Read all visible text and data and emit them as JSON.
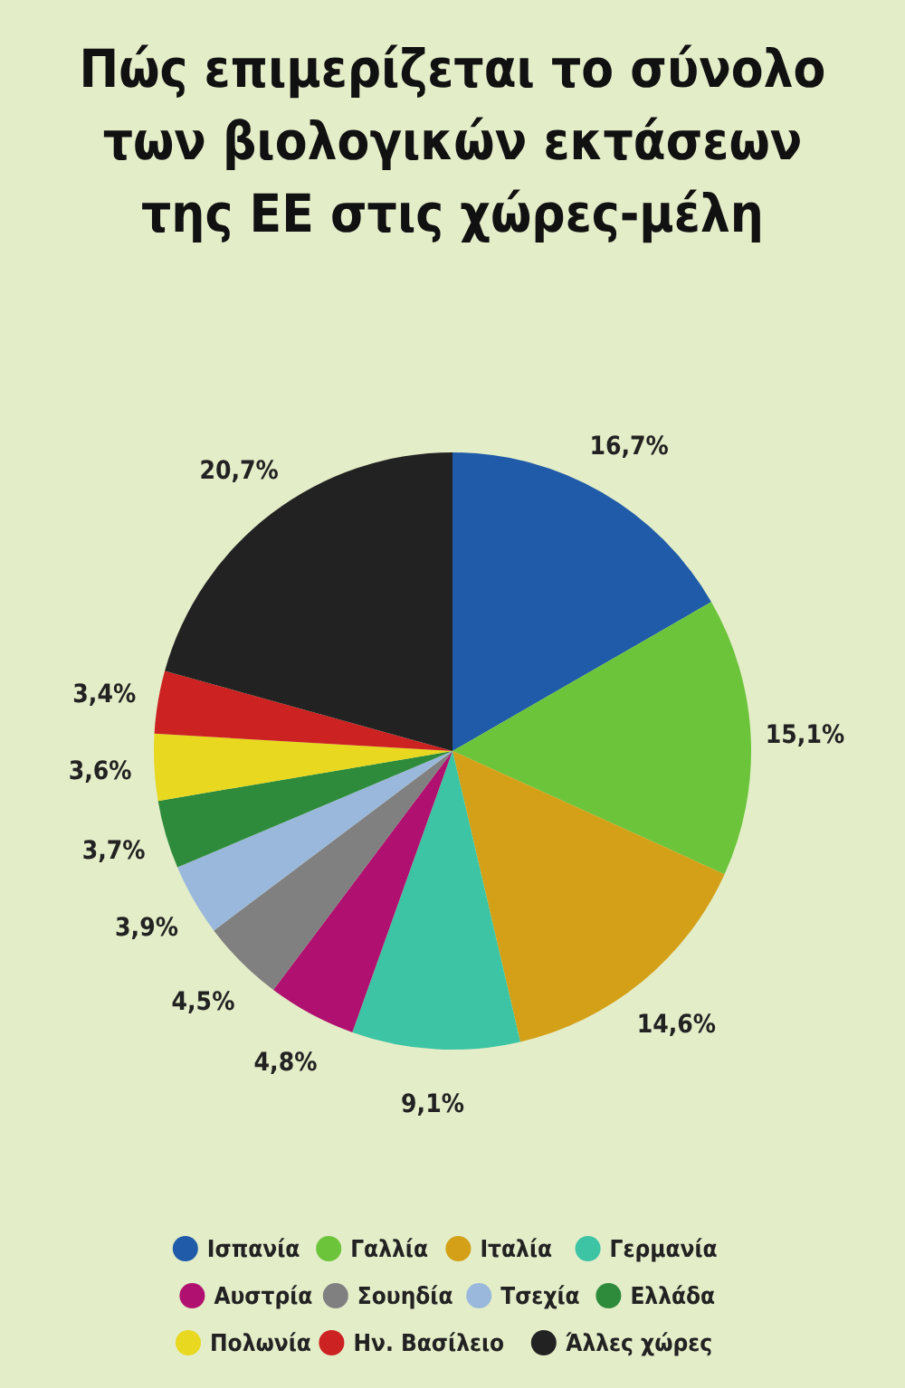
{
  "chart_data": {
    "type": "pie",
    "title": "Πώς επιμερίζεται το σύνολο των βιολογικών εκτάσεων της ΕΕ στις χώρες-μέλη",
    "categories": [
      "Ισπανία",
      "Γαλλία",
      "Ιταλία",
      "Γερμανία",
      "Αυστρία",
      "Σουηδία",
      "Τσεχία",
      "Ελλάδα",
      "Πολωνία",
      "Ην. Βασίλειο",
      "Άλλες χώρες"
    ],
    "values": [
      16.7,
      15.1,
      14.6,
      9.1,
      4.8,
      4.5,
      3.9,
      3.7,
      3.6,
      3.4,
      20.7
    ],
    "value_labels": [
      "16,7%",
      "15,1%",
      "14,6%",
      "9,1%",
      "4,8%",
      "4,5%",
      "3,9%",
      "3,7%",
      "3,6%",
      "3,4%",
      "20,7%"
    ],
    "colors": [
      "#1f5ba8",
      "#6cc43a",
      "#d4a017",
      "#3cc4a4",
      "#b0106f",
      "#808080",
      "#9ab8dc",
      "#2e8b3c",
      "#e8d820",
      "#cc2222",
      "#222222"
    ],
    "legend": "bottom"
  }
}
